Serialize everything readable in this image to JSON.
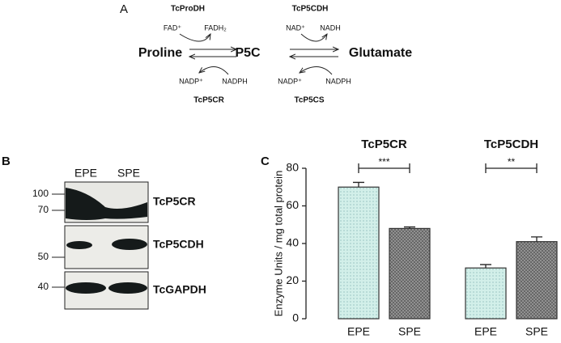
{
  "panel_a": {
    "label": "A",
    "metabolites": [
      "Proline",
      "P5C",
      "Glutamate"
    ],
    "enzymes_top": [
      "TcProDH",
      "TcP5CDH"
    ],
    "enzymes_bottom": [
      "TcP5CR",
      "TcP5CS"
    ],
    "cofactors_top": [
      "FAD⁺",
      "FADH₂",
      "NAD⁺",
      "NADH"
    ],
    "cofactors_bottom": [
      "NADP⁺",
      "NADPH",
      "NADP⁺",
      "NADPH"
    ]
  },
  "panel_b": {
    "label": "B",
    "lanes": [
      "EPE",
      "SPE"
    ],
    "markers": [
      "100",
      "70",
      "50",
      "40"
    ],
    "blots": [
      "TcP5CR",
      "TcP5CDH",
      "TcGAPDH"
    ]
  },
  "chart_data": {
    "type": "bar",
    "panel_label": "C",
    "y_label": "Enzyme Units / mg total protein",
    "categories": [
      "EPE",
      "SPE",
      "EPE",
      "SPE"
    ],
    "values": [
      70,
      48,
      27,
      41
    ],
    "errors": [
      2.5,
      0.8,
      1.8,
      2.5
    ],
    "colors": [
      "#cdeee8",
      "#8c8c8c",
      "#cdeee8",
      "#8c8c8c"
    ],
    "groups": [
      {
        "label": "TcP5CR",
        "significance": "***"
      },
      {
        "label": "TcP5CDH",
        "significance": "**"
      }
    ],
    "ylim": [
      0,
      80
    ],
    "yticks": [
      0,
      20,
      40,
      60,
      80
    ]
  }
}
